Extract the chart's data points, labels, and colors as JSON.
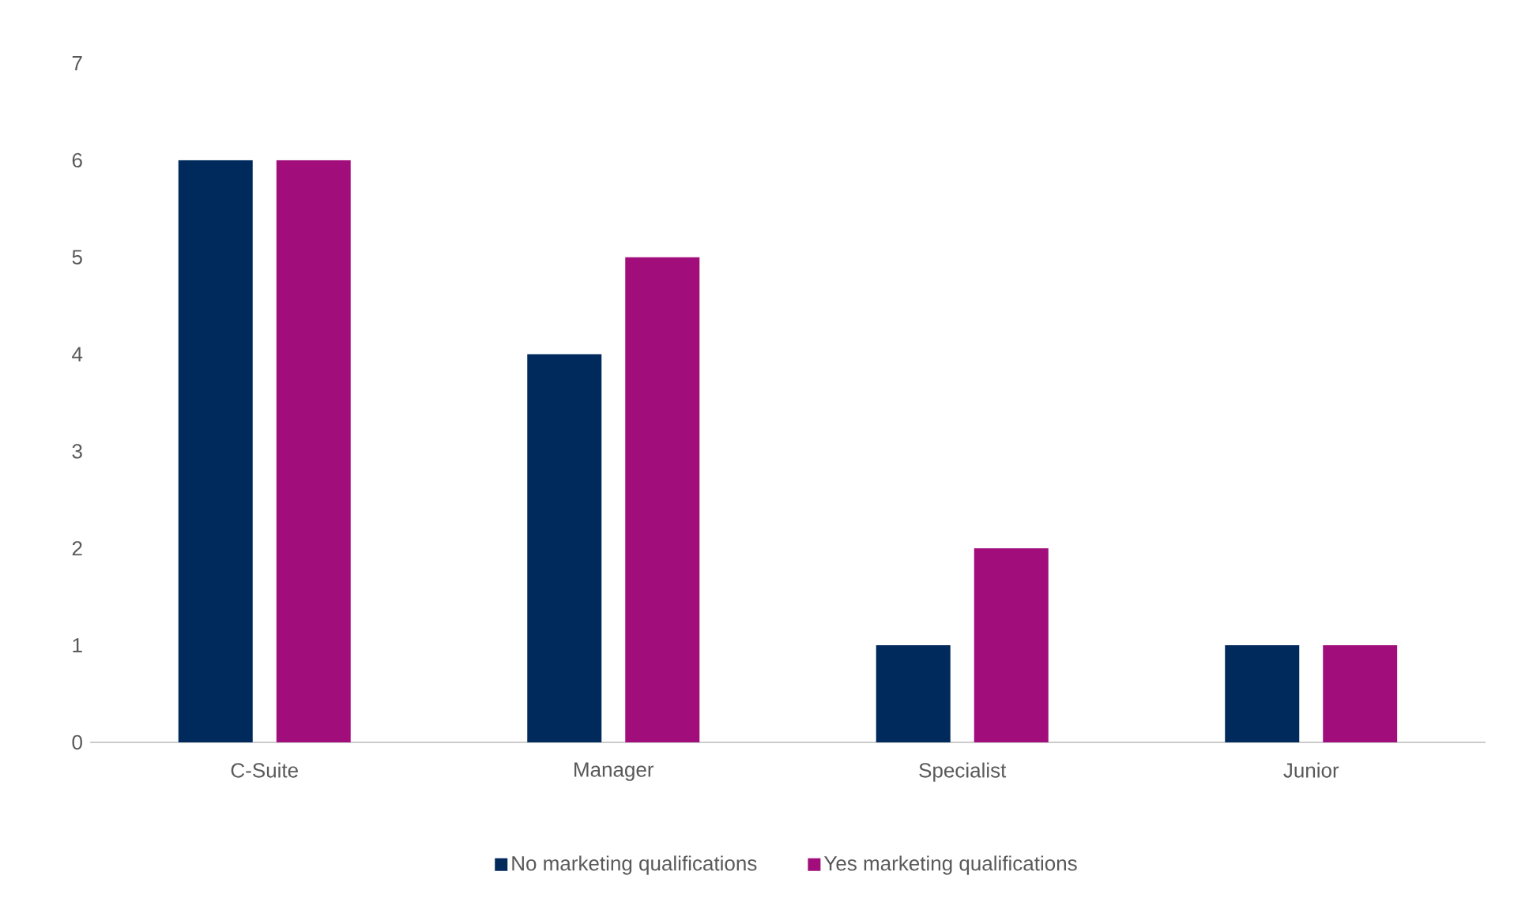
{
  "chart_data": {
    "type": "bar",
    "categories": [
      "C-Suite",
      "Manager",
      "Specialist",
      "Junior"
    ],
    "series": [
      {
        "name": "No marketing qualifications",
        "color": "#002a5c",
        "values": [
          6,
          4,
          1,
          1
        ]
      },
      {
        "name": "Yes marketing qualifications",
        "color": "#a10d7b",
        "values": [
          6,
          5,
          2,
          1
        ]
      }
    ],
    "ylim": [
      0,
      7
    ],
    "yticks": [
      0,
      1,
      2,
      3,
      4,
      5,
      6,
      7
    ],
    "legend": "bottom"
  }
}
